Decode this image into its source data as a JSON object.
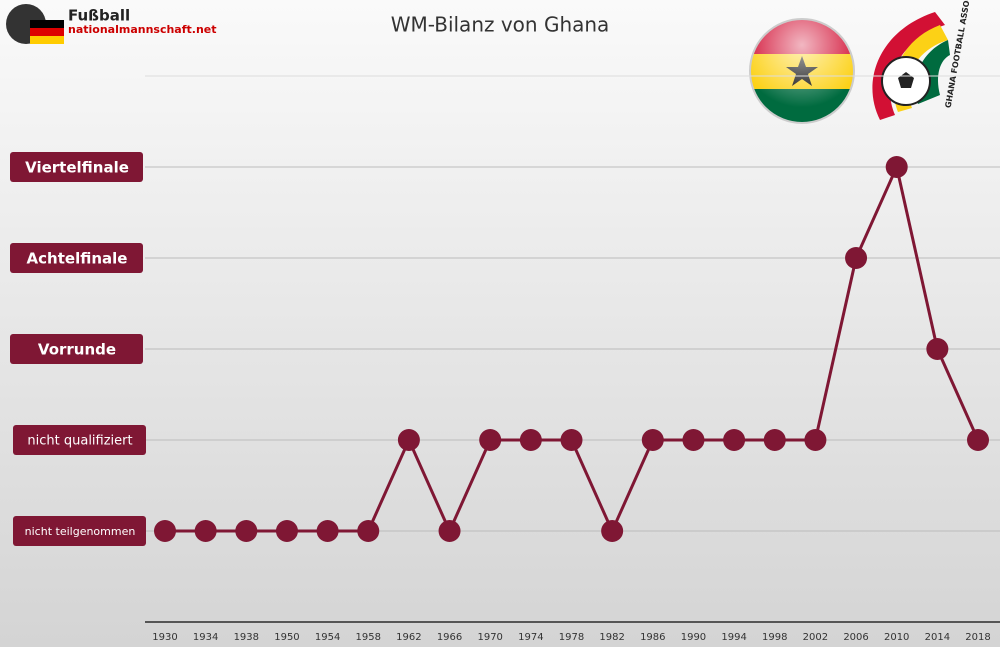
{
  "chart_data": {
    "type": "line",
    "title": "WM-Bilanz von Ghana",
    "categories": [
      "1930",
      "1934",
      "1938",
      "1950",
      "1954",
      "1958",
      "1962",
      "1966",
      "1970",
      "1974",
      "1978",
      "1982",
      "1986",
      "1990",
      "1994",
      "1998",
      "2002",
      "2006",
      "2010",
      "2014",
      "2018"
    ],
    "values": [
      0,
      0,
      0,
      0,
      0,
      0,
      1,
      0,
      1,
      1,
      1,
      0,
      1,
      1,
      1,
      1,
      1,
      3,
      4,
      2,
      1
    ],
    "color": "#7f1734",
    "ylim": [
      -1,
      5
    ],
    "yticks": [
      {
        "value": 0,
        "label": "nicht teilgenommen"
      },
      {
        "value": 1,
        "label": "nicht qualifiziert"
      },
      {
        "value": 2,
        "label": "Vorrunde"
      },
      {
        "value": 3,
        "label": "Achtelfinale"
      },
      {
        "value": 4,
        "label": "Viertelfinale"
      }
    ],
    "grid": true
  },
  "logo": {
    "name": "Fußball",
    "site": "nationalmannschaft.net"
  },
  "badge": "GHANA FOOTBALL ASSOCIATION"
}
